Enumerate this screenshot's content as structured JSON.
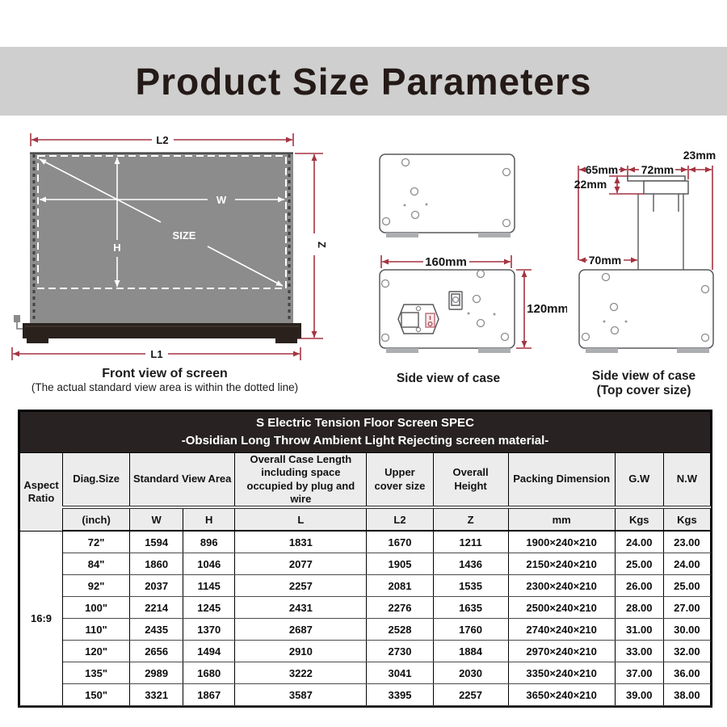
{
  "page_title": "Product Size Parameters",
  "colors": {
    "accent_red": "#a53441",
    "screen_gray": "#8c8c8c",
    "base_dark": "#2a211d",
    "title_band_gray": "#cfcfcf",
    "table_header_dark": "#282222",
    "table_header_gray": "#ececec"
  },
  "front_view": {
    "dim_l2": "L2",
    "dim_w": "W",
    "dim_h": "H",
    "dim_size": "SIZE",
    "dim_z": "Z",
    "dim_l1": "L1",
    "caption": "Front view of screen",
    "subcaption": "(The actual standard view area is within the dotted line)"
  },
  "side_view": {
    "dim_width": "160mm",
    "dim_height": "120mm",
    "caption": "Side view of case"
  },
  "top_cover_view": {
    "dim_65": "65mm",
    "dim_72": "72mm",
    "dim_23": "23mm",
    "dim_22": "22mm",
    "dim_70": "70mm",
    "caption": "Side view of case",
    "subcaption": "(Top cover size)"
  },
  "table": {
    "title_line1": "S Electric Tension Floor Screen SPEC",
    "title_line2": "-Obsidian Long Throw Ambient Light Rejecting screen material-",
    "headers": {
      "aspect_ratio": "Aspect Ratio",
      "diag_size": "Diag.Size",
      "standard_view_area": "Standard View Area",
      "overall_case_length": "Overall Case Length including space occupied by plug and wire",
      "upper_cover_size": "Upper cover size",
      "overall_height": "Overall Height",
      "packing_dimension": "Packing Dimension",
      "gross_weight": "G.W",
      "net_weight": "N.W"
    },
    "units": {
      "diag": "(inch)",
      "w": "W",
      "h": "H",
      "l": "L",
      "l2": "L2",
      "z": "Z",
      "packing": "mm",
      "gw": "Kgs",
      "nw": "Kgs"
    },
    "aspect_ratio": "16:9",
    "rows": [
      [
        "72\"",
        "1594",
        "896",
        "1831",
        "1670",
        "1211",
        "1900×240×210",
        "24.00",
        "23.00"
      ],
      [
        "84\"",
        "1860",
        "1046",
        "2077",
        "1905",
        "1436",
        "2150×240×210",
        "25.00",
        "24.00"
      ],
      [
        "92\"",
        "2037",
        "1145",
        "2257",
        "2081",
        "1535",
        "2300×240×210",
        "26.00",
        "25.00"
      ],
      [
        "100\"",
        "2214",
        "1245",
        "2431",
        "2276",
        "1635",
        "2500×240×210",
        "28.00",
        "27.00"
      ],
      [
        "110\"",
        "2435",
        "1370",
        "2687",
        "2528",
        "1760",
        "2740×240×210",
        "31.00",
        "30.00"
      ],
      [
        "120\"",
        "2656",
        "1494",
        "2910",
        "2730",
        "1884",
        "2970×240×210",
        "33.00",
        "32.00"
      ],
      [
        "135\"",
        "2989",
        "1680",
        "3222",
        "3041",
        "2030",
        "3350×240×210",
        "37.00",
        "36.00"
      ],
      [
        "150\"",
        "3321",
        "1867",
        "3587",
        "3395",
        "2257",
        "3650×240×210",
        "39.00",
        "38.00"
      ]
    ]
  }
}
